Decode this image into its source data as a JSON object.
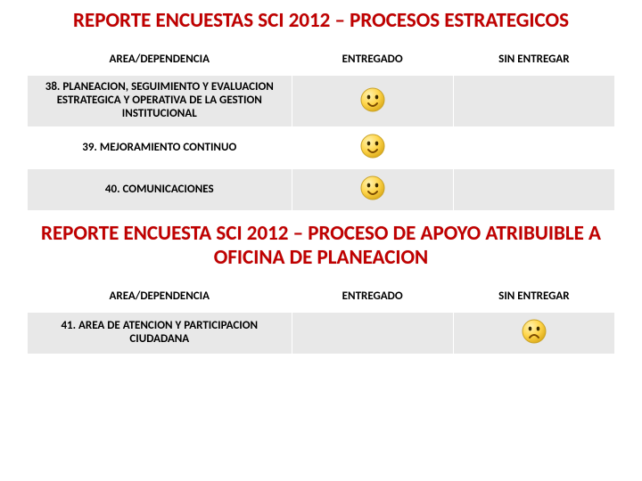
{
  "section1": {
    "title": "REPORTE ENCUESTAS SCI 2012 – PROCESOS ESTRATEGICOS",
    "headers": {
      "area": "AREA/DEPENDENCIA",
      "entregado": "ENTREGADO",
      "sin": "SIN ENTREGAR"
    },
    "rows": [
      {
        "area": "38. PLANEACION, SEGUIMIENTO Y EVALUACION ESTRATEGICA Y OPERATIVA DE LA GESTION INSTITUCIONAL",
        "entregado_icon": "happy",
        "sin_icon": ""
      },
      {
        "area": "39. MEJORAMIENTO CONTINUO",
        "entregado_icon": "happy",
        "sin_icon": ""
      },
      {
        "area": "40. COMUNICACIONES",
        "entregado_icon": "happy",
        "sin_icon": ""
      }
    ]
  },
  "section2": {
    "title": "REPORTE ENCUESTA SCI 2012 – PROCESO DE APOYO ATRIBUIBLE A OFICINA DE PLANEACION",
    "headers": {
      "area": "AREA/DEPENDENCIA",
      "entregado": "ENTREGADO",
      "sin": "SIN ENTREGAR"
    },
    "rows": [
      {
        "area": "41. AREA DE ATENCION Y PARTICIPACION CIUDADANA",
        "entregado_icon": "",
        "sin_icon": "sad"
      }
    ]
  },
  "colors": {
    "title": "#c00000",
    "band": "#e8e8e8",
    "smiley_fill": "#ffd54a",
    "smiley_stroke": "#c9a227"
  },
  "icon_size": 30
}
